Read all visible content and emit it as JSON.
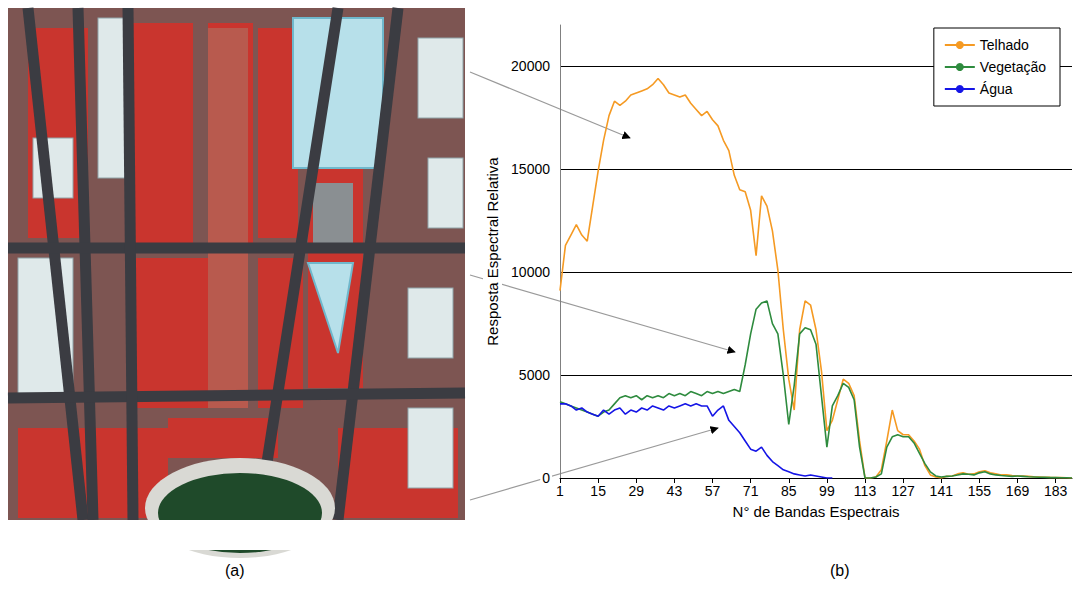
{
  "panel_labels": [
    "(a)",
    "(b)"
  ],
  "chart_data": {
    "type": "line",
    "x_label": "N° de Bandas Espectrais",
    "y_label": "Resposta Espectral Relativa",
    "x": [
      1,
      3,
      5,
      7,
      9,
      11,
      13,
      15,
      17,
      19,
      21,
      23,
      25,
      27,
      29,
      31,
      33,
      35,
      37,
      39,
      41,
      43,
      45,
      47,
      49,
      51,
      53,
      55,
      57,
      59,
      61,
      63,
      65,
      67,
      69,
      71,
      73,
      75,
      77,
      79,
      81,
      83,
      85,
      87,
      89,
      91,
      93,
      95,
      97,
      99,
      101,
      103,
      105,
      107,
      109,
      111,
      113,
      115,
      117,
      119,
      121,
      123,
      125,
      127,
      129,
      131,
      133,
      135,
      137,
      139,
      141,
      143,
      145,
      147,
      149,
      151,
      153,
      155,
      157,
      159,
      161,
      163,
      165,
      167,
      169,
      171,
      173,
      175,
      177,
      179,
      181,
      183,
      185,
      187,
      189
    ],
    "series": [
      {
        "name": "Telhado",
        "color": "#f59a23",
        "line_style": "solid",
        "values": [
          9100,
          11300,
          11800,
          12300,
          11800,
          11500,
          13200,
          14900,
          16400,
          17600,
          18300,
          18100,
          18300,
          18600,
          18700,
          18800,
          18900,
          19100,
          19400,
          19100,
          18700,
          18600,
          18500,
          18600,
          18200,
          17900,
          17600,
          17800,
          17400,
          17100,
          16400,
          15900,
          14700,
          14000,
          13900,
          13000,
          10800,
          13700,
          13200,
          12000,
          10100,
          7200,
          4800,
          3300,
          7200,
          8600,
          8400,
          7200,
          5200,
          2300,
          2800,
          3800,
          4800,
          4600,
          4000,
          1800,
          0,
          0,
          50,
          400,
          1800,
          3300,
          2300,
          2100,
          2100,
          1800,
          1400,
          600,
          150,
          50,
          0,
          80,
          100,
          200,
          250,
          180,
          200,
          300,
          350,
          250,
          200,
          150,
          150,
          120,
          100,
          90,
          80,
          60,
          50,
          40,
          30,
          25,
          20,
          10,
          0
        ]
      },
      {
        "name": "Vegetação",
        "color": "#2e8b3e",
        "line_style": "solid",
        "values": [
          3700,
          3600,
          3500,
          3400,
          3300,
          3200,
          3100,
          3000,
          3200,
          3300,
          3600,
          3900,
          4000,
          3900,
          4000,
          3800,
          4000,
          3900,
          4000,
          3900,
          4100,
          4000,
          4100,
          4000,
          4200,
          4100,
          4000,
          4200,
          4100,
          4200,
          4100,
          4200,
          4300,
          4200,
          5500,
          7000,
          8200,
          8500,
          8600,
          7500,
          7000,
          5000,
          2600,
          4500,
          7000,
          7300,
          7200,
          6500,
          4000,
          1500,
          3500,
          4000,
          4600,
          4400,
          3800,
          1500,
          0,
          0,
          50,
          200,
          1500,
          2000,
          2100,
          2000,
          2000,
          1700,
          1200,
          700,
          300,
          100,
          50,
          80,
          100,
          150,
          200,
          180,
          150,
          250,
          300,
          200,
          150,
          120,
          100,
          80,
          100,
          80,
          60,
          50,
          40,
          30,
          20,
          20,
          10,
          10,
          0
        ]
      },
      {
        "name": "Água",
        "color": "#1515e6",
        "line_style": "solid",
        "values": [
          3600,
          3600,
          3500,
          3300,
          3400,
          3200,
          3100,
          3000,
          3300,
          3100,
          3300,
          3400,
          3100,
          3300,
          3200,
          3400,
          3300,
          3500,
          3400,
          3300,
          3500,
          3400,
          3500,
          3600,
          3500,
          3600,
          3500,
          3500,
          3000,
          3300,
          3500,
          2800,
          2500,
          2200,
          1800,
          1400,
          1300,
          1500,
          1100,
          800,
          600,
          400,
          300,
          200,
          150,
          100,
          150,
          100,
          50,
          0,
          0,
          null,
          null,
          null,
          null,
          null,
          null,
          null,
          null,
          null,
          null,
          null,
          null,
          null,
          null,
          null,
          null,
          null,
          null,
          null,
          null,
          null,
          null,
          null,
          null,
          null,
          null,
          null,
          null,
          null,
          null,
          null,
          null,
          null,
          null,
          null,
          null,
          null,
          null,
          null,
          null,
          null,
          null,
          null,
          null
        ]
      }
    ],
    "xlim": [
      1,
      189
    ],
    "xticks": [
      1,
      15,
      29,
      43,
      57,
      71,
      85,
      99,
      113,
      127,
      141,
      155,
      169,
      183
    ],
    "ylim": [
      0,
      22000
    ],
    "yticks": [
      0,
      5000,
      10000,
      15000,
      20000
    ],
    "grid": true,
    "legend": "upper right"
  }
}
